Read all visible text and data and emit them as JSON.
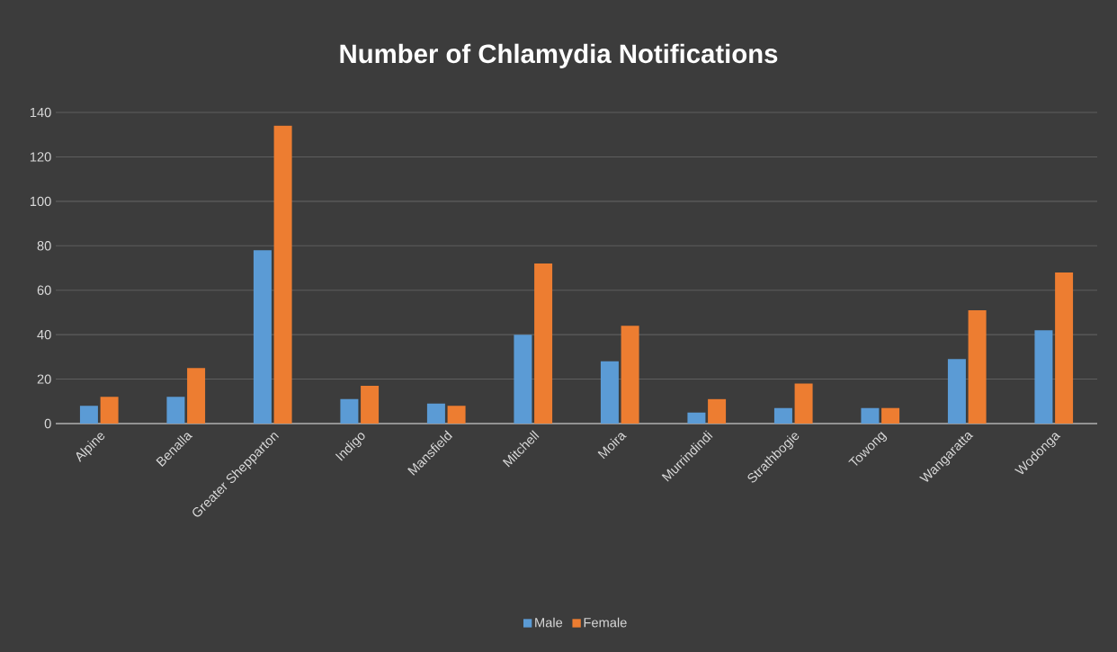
{
  "chart_data": {
    "type": "bar",
    "title": "Number of Chlamydia  Notifications",
    "categories": [
      "Alpine",
      "Benalla",
      "Greater Shepparton",
      "Indigo",
      "Mansfield",
      "Mitchell",
      "Moira",
      "Murrindindi",
      "Strathbogie",
      "Towong",
      "Wangaratta",
      "Wodonga"
    ],
    "series": [
      {
        "name": "Male",
        "color": "#5b9bd5",
        "values": [
          8,
          12,
          78,
          11,
          9,
          40,
          28,
          5,
          7,
          7,
          29,
          42
        ]
      },
      {
        "name": "Female",
        "color": "#ed7d31",
        "values": [
          12,
          25,
          134,
          17,
          8,
          72,
          44,
          11,
          18,
          7,
          51,
          68
        ]
      }
    ],
    "ylim": [
      0,
      140
    ],
    "yticks": [
      0,
      20,
      40,
      60,
      80,
      100,
      120,
      140
    ],
    "grid": "y",
    "legend": "bottom"
  }
}
